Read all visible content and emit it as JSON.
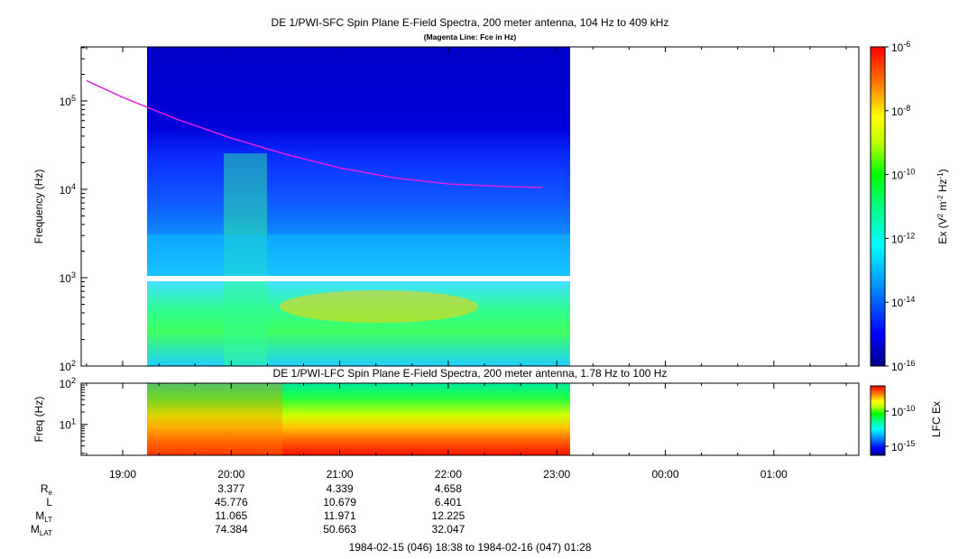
{
  "chart_data": [
    {
      "type": "heatmap",
      "title": "DE 1/PWI-SFC  Spin Plane E-Field Spectra, 200 meter antenna, 104 Hz to 409 kHz",
      "subtitle": "(Magenta Line: Fce in Hz)",
      "ylabel": "Frequency (Hz)",
      "yscale": "log",
      "ylim": [
        100,
        409000
      ],
      "y_ticks": [
        {
          "base": "10",
          "exp": "2",
          "value": 100
        },
        {
          "base": "10",
          "exp": "3",
          "value": 1000
        },
        {
          "base": "10",
          "exp": "4",
          "value": 10000
        },
        {
          "base": "10",
          "exp": "5",
          "value": 100000
        }
      ],
      "data_time_range": [
        "18:38",
        "22:52"
      ],
      "fce_line": {
        "color": "#e020e0",
        "times": [
          "18:40",
          "19:00",
          "19:30",
          "20:00",
          "20:30",
          "21:00",
          "21:30",
          "22:00",
          "22:30",
          "22:52"
        ],
        "values_hz": [
          170000,
          110000,
          62000,
          38000,
          25000,
          17500,
          13500,
          11500,
          10800,
          10500
        ]
      },
      "colorbar": {
        "label_prefix": "Ex (V",
        "label_sup1": "2",
        "label_mid": " m",
        "label_sup2": "-2",
        "label_mid2": " Hz",
        "label_sup3": "-1",
        "label_suffix": ")",
        "scale": "log",
        "range": [
          1e-16,
          1e-06
        ],
        "ticks": [
          {
            "base": "10",
            "exp": "-6"
          },
          {
            "base": "10",
            "exp": "-8"
          },
          {
            "base": "10",
            "exp": "-10"
          },
          {
            "base": "10",
            "exp": "-12"
          },
          {
            "base": "10",
            "exp": "-14"
          },
          {
            "base": "10",
            "exp": "-16"
          }
        ]
      }
    },
    {
      "type": "heatmap",
      "title": "DE 1/PWI-LFC  Spin Plane E-Field Spectra, 200 meter antenna, 1.78 Hz to 100 Hz",
      "ylabel": "Freq (Hz)",
      "yscale": "log",
      "ylim": [
        1.78,
        100
      ],
      "y_ticks": [
        {
          "base": "10",
          "exp": "1",
          "value": 10
        },
        {
          "base": "10",
          "exp": "2",
          "value": 100
        }
      ],
      "colorbar": {
        "label": "LFC Ex",
        "scale": "log",
        "ticks": [
          {
            "base": "10",
            "exp": "-10"
          },
          {
            "base": "10",
            "exp": "-15"
          }
        ]
      }
    }
  ],
  "time_axis": {
    "ticks": [
      "19:00",
      "20:00",
      "21:00",
      "22:00",
      "23:00",
      "00:00",
      "01:00"
    ]
  },
  "ephemeris": {
    "rows": [
      {
        "label": "R",
        "sub": "e",
        "values": [
          "3.377",
          "4.339",
          "4.658"
        ]
      },
      {
        "label": "L",
        "sub": "",
        "values": [
          "45.776",
          "10.679",
          "6.401"
        ]
      },
      {
        "label": "M",
        "sub": "LT",
        "values": [
          "11.065",
          "11.971",
          "12.225"
        ]
      },
      {
        "label": "M",
        "sub": "LAT",
        "values": [
          "74.384",
          "50.663",
          "32.047"
        ]
      }
    ]
  },
  "footer": "1984-02-15 (046) 18:38 to 1984-02-16 (047) 01:28",
  "colors": {
    "fce_line": "#e020e0",
    "colormap": [
      "#00008c",
      "#0000ff",
      "#0090ff",
      "#00ffff",
      "#00ff80",
      "#00ff00",
      "#c0ff00",
      "#ffff00",
      "#ff8000",
      "#ff0000"
    ]
  }
}
